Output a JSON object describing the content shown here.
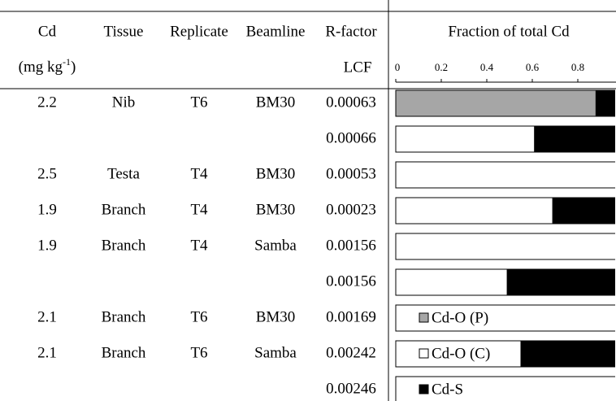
{
  "table": {
    "header": {
      "cd": "Cd",
      "unit_pre": "(mg kg",
      "unit_sup": "-1",
      "unit_post": ")",
      "tissue": "Tissue",
      "replicate": "Replicate",
      "beamline": "Beamline",
      "rfactor": "R-factor",
      "lcf": "LCF"
    },
    "rows": [
      [
        "2.2",
        "Nib",
        "T6",
        "BM30",
        "0.00063"
      ],
      [
        null,
        null,
        null,
        null,
        "0.00066"
      ],
      [
        "2.5",
        "Testa",
        "T4",
        "BM30",
        "0.00053"
      ],
      [
        "1.9",
        "Branch",
        "T4",
        "BM30",
        "0.00023"
      ],
      [
        "1.9",
        "Branch",
        "T4",
        "Samba",
        "0.00156"
      ],
      [
        null,
        null,
        null,
        null,
        "0.00156"
      ],
      [
        "2.1",
        "Branch",
        "T6",
        "BM30",
        "0.00169"
      ],
      [
        "2.1",
        "Branch",
        "T6",
        "Samba",
        "0.00242"
      ],
      [
        null,
        null,
        null,
        null,
        "0.00246"
      ]
    ]
  },
  "chart_data": {
    "type": "stacked-bar-horizontal",
    "title": "Fraction of total Cd",
    "xlim": [
      0,
      1
    ],
    "xticks": [
      0,
      0.2,
      0.4,
      0.6,
      0.8
    ],
    "series": [
      {
        "name": "Cd-O (P)",
        "color": "#a6a6a6",
        "values": [
          0.88,
          0,
          0,
          0,
          0,
          0,
          0,
          0,
          0
        ]
      },
      {
        "name": "Cd-O (C)",
        "color": "#ffffff",
        "values": [
          0,
          0.61,
          1.0,
          0.69,
          1.0,
          0.49,
          1.0,
          0.55,
          1.0
        ]
      },
      {
        "name": "Cd-S",
        "color": "#000000",
        "values": [
          0.12,
          0.39,
          0,
          0.31,
          0,
          0.51,
          0,
          0.45,
          0
        ]
      }
    ]
  }
}
